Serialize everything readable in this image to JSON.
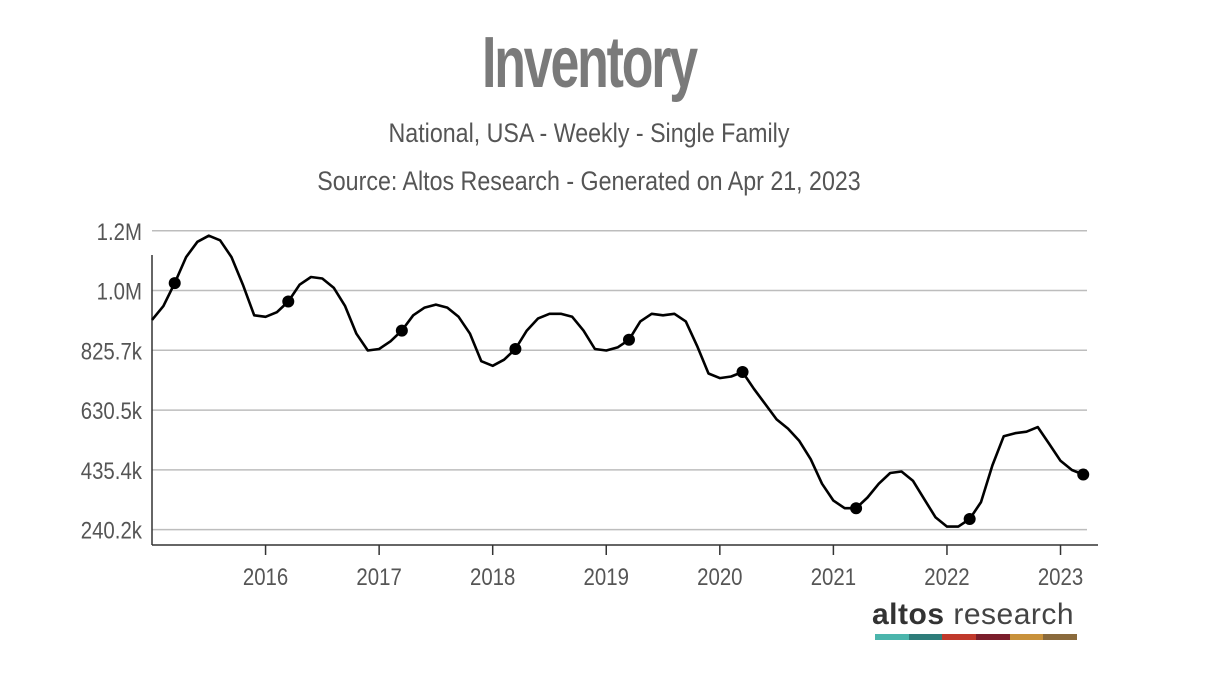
{
  "header": {
    "title": "Inventory",
    "subtitle": "National, USA - Weekly - Single Family",
    "source": "Source: Altos Research - Generated on Apr 21, 2023"
  },
  "brand": {
    "name_bold": "altos",
    "name_rest": " research",
    "colors": [
      "#4bb5ac",
      "#2e7d7a",
      "#c0392b",
      "#7b1e2b",
      "#c8913b",
      "#8a6a3c"
    ]
  },
  "chart_data": {
    "type": "line",
    "title": "Inventory",
    "subtitle": "National, USA - Weekly - Single Family",
    "ylim": [
      190000,
      1225000
    ],
    "xlim": [
      2015.0,
      2023.33
    ],
    "y_ticks": [
      {
        "value": 240200,
        "label": "240.2k"
      },
      {
        "value": 435400,
        "label": "435.4k"
      },
      {
        "value": 630500,
        "label": "630.5k"
      },
      {
        "value": 825700,
        "label": "825.7k"
      },
      {
        "value": 1020900,
        "label": "1.0M"
      },
      {
        "value": 1216000,
        "label": "1.2M"
      }
    ],
    "x_ticks": [
      {
        "value": 2016,
        "label": "2016"
      },
      {
        "value": 2017,
        "label": "2017"
      },
      {
        "value": 2018,
        "label": "2018"
      },
      {
        "value": 2019,
        "label": "2019"
      },
      {
        "value": 2020,
        "label": "2020"
      },
      {
        "value": 2021,
        "label": "2021"
      },
      {
        "value": 2022,
        "label": "2022"
      },
      {
        "value": 2023,
        "label": "2023"
      }
    ],
    "grid": true,
    "line_color": "#000000",
    "series": [
      {
        "x": [
          2015.0,
          2015.1,
          2015.2,
          2015.3,
          2015.4,
          2015.5,
          2015.6,
          2015.7,
          2015.8,
          2015.9,
          2016.0,
          2016.1,
          2016.2,
          2016.3,
          2016.4,
          2016.5,
          2016.6,
          2016.7,
          2016.8,
          2016.9,
          2017.0,
          2017.1,
          2017.2,
          2017.3,
          2017.4,
          2017.5,
          2017.6,
          2017.7,
          2017.8,
          2017.9,
          2018.0,
          2018.1,
          2018.2,
          2018.3,
          2018.4,
          2018.5,
          2018.6,
          2018.7,
          2018.8,
          2018.9,
          2019.0,
          2019.1,
          2019.2,
          2019.3,
          2019.4,
          2019.5,
          2019.6,
          2019.7,
          2019.8,
          2019.9,
          2020.0,
          2020.1,
          2020.2,
          2020.3,
          2020.4,
          2020.5,
          2020.6,
          2020.7,
          2020.8,
          2020.9,
          2021.0,
          2021.1,
          2021.2,
          2021.3,
          2021.4,
          2021.5,
          2021.6,
          2021.7,
          2021.8,
          2021.9,
          2022.0,
          2022.1,
          2022.2,
          2022.3,
          2022.4,
          2022.5,
          2022.6,
          2022.7,
          2022.8,
          2022.9,
          2023.0,
          2023.1,
          2023.2
        ],
        "values": [
          925000,
          970000,
          1045000,
          1130000,
          1180000,
          1200000,
          1185000,
          1130000,
          1040000,
          940000,
          935000,
          950000,
          985000,
          1040000,
          1065000,
          1060000,
          1030000,
          970000,
          880000,
          825000,
          830000,
          855000,
          890000,
          940000,
          965000,
          975000,
          965000,
          935000,
          880000,
          790000,
          775000,
          795000,
          830000,
          890000,
          930000,
          945000,
          945000,
          935000,
          890000,
          830000,
          825000,
          835000,
          860000,
          920000,
          945000,
          940000,
          945000,
          920000,
          840000,
          750000,
          735000,
          740000,
          755000,
          700000,
          650000,
          600000,
          570000,
          530000,
          470000,
          390000,
          335000,
          310000,
          310000,
          345000,
          390000,
          425000,
          430000,
          400000,
          340000,
          280000,
          250000,
          250000,
          275000,
          330000,
          450000,
          545000,
          555000,
          560000,
          575000,
          520000,
          465000,
          435000,
          420000
        ]
      }
    ],
    "markers": [
      {
        "x": 2015.2,
        "y": 1045000
      },
      {
        "x": 2016.2,
        "y": 985000
      },
      {
        "x": 2017.2,
        "y": 890000
      },
      {
        "x": 2018.2,
        "y": 830000
      },
      {
        "x": 2019.2,
        "y": 860000
      },
      {
        "x": 2020.2,
        "y": 755000
      },
      {
        "x": 2021.2,
        "y": 310000
      },
      {
        "x": 2022.2,
        "y": 275000
      },
      {
        "x": 2023.2,
        "y": 420000
      }
    ]
  }
}
